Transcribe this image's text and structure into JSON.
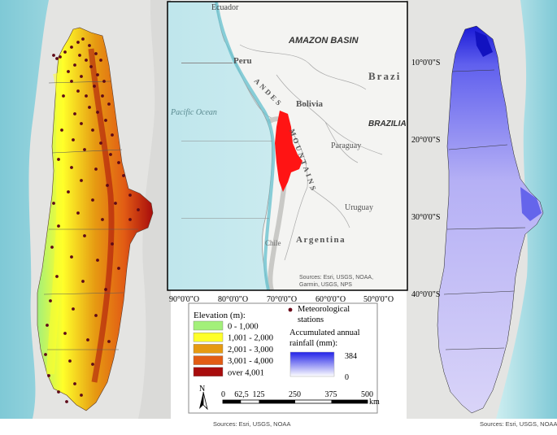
{
  "inset_map": {
    "labels": {
      "ecuador": "Ecuador",
      "amazon_basin": "AMAZON BASIN",
      "peru": "Peru",
      "brazil": "Brazi",
      "pacific_ocean": "Pacific Ocean",
      "andes": "ANDES",
      "bolivia": "Bolivia",
      "brazilia": "BRAZILIA",
      "mountains": "MOUNTAINS",
      "paraguay": "Paraguay",
      "uruguay": "Uruguay",
      "chile": "Chile",
      "argentina": "Argentina"
    },
    "attribution": "Sources: Esri, USGS, NOAA, Sources: Esri, Garmin, USGS, NPS",
    "lat_labels": [
      "10°0'0\"S",
      "20°0'0\"S",
      "30°0'0\"S",
      "40°0'0\"S"
    ],
    "lon_labels": [
      "90°0'0\"O",
      "80°0'0\"O",
      "70°0'0\"O",
      "60°0'0\"O",
      "50°0'0\"O"
    ]
  },
  "legend": {
    "elevation_title": "Elevation (m):",
    "elevation_classes": [
      {
        "label": "0 - 1,000",
        "color": "#a3f07a"
      },
      {
        "label": "1,001 - 2,000",
        "color": "#ffff2a"
      },
      {
        "label": "2,001 - 3,000",
        "color": "#e69a12"
      },
      {
        "label": "3,001 - 4,000",
        "color": "#e25c14"
      },
      {
        "label": "over 4,001",
        "color": "#a80c0c"
      }
    ],
    "stations_label": "Meteorological stations",
    "rainfall_title": "Accumulated annual rainfall (mm):",
    "rainfall_max": "384",
    "rainfall_min": "0",
    "rainfall_colors": {
      "high": "#2222e8",
      "low": "#ffffff"
    },
    "north_label": "N",
    "scale_ticks": [
      "0",
      "62,5",
      "125",
      "250",
      "375",
      "500"
    ],
    "scale_unit": "km"
  },
  "attribution_left": "Sources: Esri, USGS, NOAA",
  "attribution_right": "Sources: Esri, USGS, NOAA"
}
